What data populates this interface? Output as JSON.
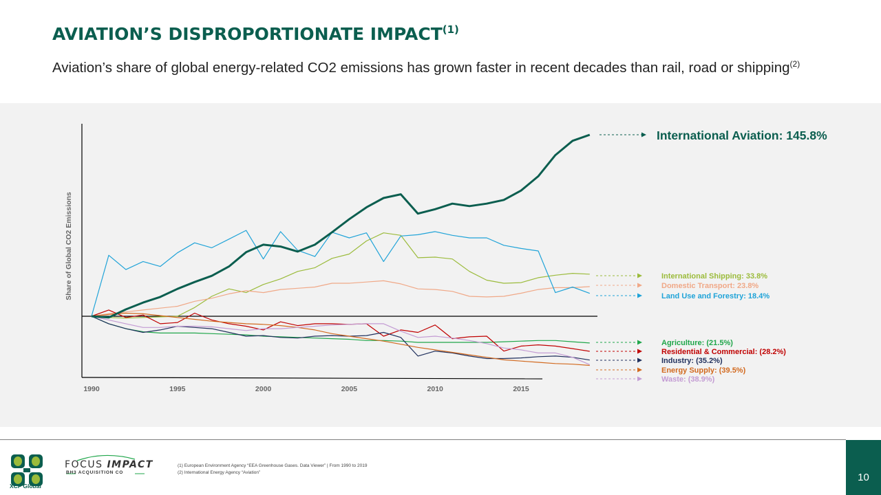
{
  "header": {
    "title": "AVIATION’S DISPROPORTIONATE IMPACT",
    "title_ref": "(1)",
    "subtitle": "Aviation’s share of global energy-related CO2 emissions has grown faster in recent decades than rail, road or shipping",
    "subtitle_ref": "(2)"
  },
  "chart_data": {
    "type": "line",
    "title": "",
    "xlabel": "",
    "ylabel": "Share of Global CO2 Emissions",
    "x": [
      1990,
      1991,
      1992,
      1993,
      1994,
      1995,
      1996,
      1997,
      1998,
      1999,
      2000,
      2001,
      2002,
      2003,
      2004,
      2005,
      2006,
      2007,
      2008,
      2009,
      2010,
      2011,
      2012,
      2013,
      2014,
      2015,
      2016,
      2017,
      2018,
      2019
    ],
    "x_ticks": [
      "1990",
      "1995",
      "2000",
      "2005",
      "2010",
      "2015"
    ],
    "xlim": [
      1990,
      2019
    ],
    "ylim": [
      -50,
      155
    ],
    "units": "% change since 1990",
    "grid": false,
    "series": [
      {
        "name": "International Aviation",
        "label": "International Aviation: 145.8%",
        "color": "#0b5e4f",
        "emphasis": true,
        "values": [
          0,
          -1,
          5.5,
          11,
          15.5,
          22,
          27.5,
          32.5,
          40,
          51.5,
          57.5,
          56,
          52,
          57.5,
          67.5,
          78,
          87.5,
          95,
          98,
          82.5,
          86,
          90.5,
          88.5,
          90.5,
          93.5,
          101,
          112.5,
          129.5,
          141,
          145.8
        ]
      },
      {
        "name": "International Shipping",
        "label": "International Shipping: 33.8%",
        "color": "#9bbb3b",
        "values": [
          0,
          -1,
          -1.5,
          -1,
          -0.5,
          0,
          7,
          16,
          22,
          19,
          25.5,
          30,
          36,
          39,
          46.5,
          50,
          60.5,
          67,
          65,
          47,
          47.5,
          46,
          36,
          29,
          26.5,
          27,
          31,
          33,
          34.5,
          33.8
        ]
      },
      {
        "name": "Domestic Transport",
        "label": "Domestic Transport: 23.8%",
        "color": "#f0a887",
        "values": [
          0,
          2,
          3.5,
          5,
          6.5,
          8,
          12,
          14.5,
          18,
          20.5,
          19,
          21.5,
          22.5,
          23.5,
          26.5,
          26.5,
          27.5,
          28.5,
          26,
          22,
          21.5,
          20,
          16,
          15.5,
          16,
          18.5,
          21.5,
          23,
          23,
          23.8
        ]
      },
      {
        "name": "Land Use and Forestry",
        "label": "Land Use and Forestry: 18.4%",
        "color": "#1fa3d8",
        "values": [
          0,
          49,
          37.5,
          44,
          40,
          51,
          59,
          55,
          62,
          69,
          46,
          68,
          53,
          48,
          67.5,
          63,
          67,
          44,
          64.5,
          65.5,
          68,
          65,
          63,
          63,
          57,
          54.5,
          52.5,
          19,
          23.5,
          18.4
        ]
      },
      {
        "name": "Agriculture",
        "label": "Agriculture: (21.5%)",
        "color": "#1fa64a",
        "values": [
          0,
          -6,
          -10,
          -12.5,
          -13.5,
          -13.5,
          -13.5,
          -14,
          -14.5,
          -15,
          -16,
          -16.5,
          -17,
          -17.5,
          -18,
          -18.5,
          -19.5,
          -19.5,
          -20,
          -21,
          -21,
          -21,
          -21,
          -21,
          -20.5,
          -20,
          -19.5,
          -19.5,
          -20.5,
          -21.5
        ]
      },
      {
        "name": "Residential & Commercial",
        "label": "Residential & Commercial: (28.2%)",
        "color": "#c00000",
        "values": [
          0,
          5,
          -1,
          1,
          -6,
          -5,
          2.5,
          -3,
          -6,
          -8,
          -11,
          -4.5,
          -7.5,
          -6,
          -6,
          -6.5,
          -6,
          -16,
          -11,
          -13,
          -7,
          -18,
          -16.5,
          -16,
          -28,
          -24,
          -23,
          -24,
          -26,
          -28.2
        ]
      },
      {
        "name": "Industry",
        "label": "Industry: (35.2%)",
        "color": "#1f2f5c",
        "values": [
          0,
          -6,
          -10,
          -13,
          -11,
          -8,
          -9,
          -10,
          -13,
          -16,
          -15.5,
          -17,
          -17.5,
          -16,
          -15.5,
          -16,
          -15.5,
          -13,
          -17,
          -32,
          -28,
          -29.5,
          -32,
          -34,
          -34,
          -33.5,
          -32.5,
          -32,
          -33,
          -35.2
        ]
      },
      {
        "name": "Energy Supply",
        "label": "Energy Supply: (39.5%)",
        "color": "#d2691e",
        "values": [
          0,
          1.5,
          2.5,
          2,
          0.5,
          -1,
          -2.5,
          -4,
          -5,
          -6,
          -6.5,
          -7.5,
          -9,
          -11,
          -14,
          -16,
          -18,
          -20,
          -22.5,
          -25,
          -27,
          -29,
          -31,
          -33,
          -35,
          -36,
          -37,
          -38,
          -38.5,
          -39.5
        ]
      },
      {
        "name": "Waste",
        "label": "Waste: (38.9%)",
        "color": "#c39bd3",
        "values": [
          0,
          -3,
          -6,
          -9,
          -9,
          -8,
          -8,
          -8.5,
          -10,
          -11.5,
          -10,
          -10,
          -9,
          -8,
          -7,
          -6.5,
          -6,
          -6,
          -12,
          -17,
          -16,
          -17.5,
          -19.5,
          -22,
          -25.5,
          -27,
          -29.5,
          -29.5,
          -33,
          -38.9
        ]
      }
    ]
  },
  "footer": {
    "notes": [
      "(1) European Environment Agency “EEA Greenhouse Gases. Data Viewer” | From 1990 to 2019",
      "(2) International Energy Agency “Aviation”"
    ],
    "page_number": "10",
    "logo_xcf": "XCF Global",
    "logo_focus_title_a": "FOCUS ",
    "logo_focus_title_b": "IMPACT",
    "logo_focus_sub": "BH3 ACQUISITION CO"
  },
  "colors": {
    "brand": "#0b5e4f",
    "panel_bg": "#f2f2f2"
  }
}
